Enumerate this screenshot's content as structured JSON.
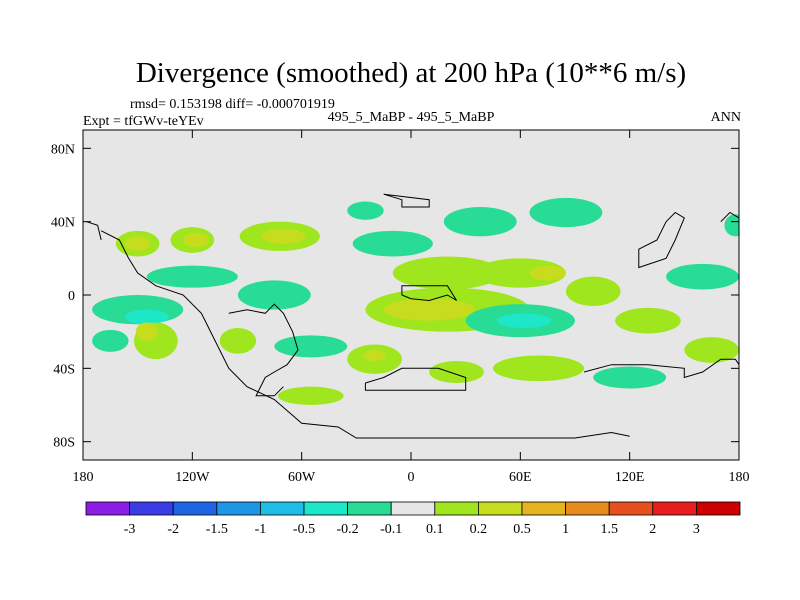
{
  "chart_data": {
    "type": "heatmap",
    "projection": "cylindrical-equidistant",
    "title": "Divergence (smoothed) at 200 hPa (10**6 m/s)",
    "stats_line": "rmsd= 0.153198 diff= -0.000701919",
    "left_label": "Expt = tfGWv-teYEv",
    "center_label": "495_5_MaBP - 495_5_MaBP",
    "right_label": "ANN",
    "xlim": [
      -180,
      180
    ],
    "ylim": [
      -90,
      90
    ],
    "x_ticks": [
      {
        "value": -180,
        "label": "180"
      },
      {
        "value": -120,
        "label": "120W"
      },
      {
        "value": -60,
        "label": "60W"
      },
      {
        "value": 0,
        "label": "0"
      },
      {
        "value": 60,
        "label": "60E"
      },
      {
        "value": 120,
        "label": "120E"
      },
      {
        "value": 180,
        "label": "180"
      }
    ],
    "y_ticks": [
      {
        "value": 80,
        "label": "80N"
      },
      {
        "value": 40,
        "label": "40N"
      },
      {
        "value": 0,
        "label": "0"
      },
      {
        "value": -40,
        "label": "40S"
      },
      {
        "value": -80,
        "label": "80S"
      }
    ],
    "background_color": "#e6e6e6",
    "colorbar": {
      "levels": [
        "-3",
        "-2",
        "-1.5",
        "-1",
        "-0.5",
        "-0.2",
        "-0.1",
        "0.1",
        "0.2",
        "0.5",
        "1",
        "1.5",
        "2",
        "3"
      ],
      "colors": [
        "#8c1ee6",
        "#3c3ce6",
        "#1e64e6",
        "#1e96e6",
        "#1ebee6",
        "#1ee6c8",
        "#28dc96",
        "#e6e6e6",
        "#a0e61e",
        "#c8dc1e",
        "#e6b41e",
        "#e68c1e",
        "#e6501e",
        "#e61e1e",
        "#cc0000"
      ]
    },
    "blobs": [
      {
        "lon": -150,
        "lat": 28,
        "rlon": 12,
        "rlat": 7,
        "level": "pos1"
      },
      {
        "lon": -150,
        "lat": 28,
        "rlon": 7,
        "rlat": 4,
        "level": "pos2"
      },
      {
        "lon": -120,
        "lat": 30,
        "rlon": 12,
        "rlat": 7,
        "level": "pos1"
      },
      {
        "lon": -118,
        "lat": 30,
        "rlon": 7,
        "rlat": 4,
        "level": "pos2"
      },
      {
        "lon": -72,
        "lat": 32,
        "rlon": 22,
        "rlat": 8,
        "level": "pos1"
      },
      {
        "lon": -70,
        "lat": 32,
        "rlon": 12,
        "rlat": 4,
        "level": "pos2"
      },
      {
        "lon": -25,
        "lat": 46,
        "rlon": 10,
        "rlat": 5,
        "level": "neg1"
      },
      {
        "lon": -10,
        "lat": 28,
        "rlon": 22,
        "rlat": 7,
        "level": "neg1"
      },
      {
        "lon": 38,
        "lat": 40,
        "rlon": 20,
        "rlat": 8,
        "level": "neg1"
      },
      {
        "lon": 85,
        "lat": 45,
        "rlon": 20,
        "rlat": 8,
        "level": "neg1"
      },
      {
        "lon": 20,
        "lat": 12,
        "rlon": 30,
        "rlat": 9,
        "level": "pos1"
      },
      {
        "lon": 60,
        "lat": 12,
        "rlon": 25,
        "rlat": 8,
        "level": "pos1"
      },
      {
        "lon": 75,
        "lat": 12,
        "rlon": 10,
        "rlat": 4,
        "level": "pos2"
      },
      {
        "lon": 20,
        "lat": -8,
        "rlon": 45,
        "rlat": 12,
        "level": "pos1"
      },
      {
        "lon": 10,
        "lat": -8,
        "rlon": 25,
        "rlat": 6,
        "level": "pos2"
      },
      {
        "lon": 60,
        "lat": -14,
        "rlon": 30,
        "rlat": 9,
        "level": "neg1"
      },
      {
        "lon": 62,
        "lat": -14,
        "rlon": 15,
        "rlat": 4,
        "level": "neg2"
      },
      {
        "lon": 100,
        "lat": 2,
        "rlon": 15,
        "rlat": 8,
        "level": "pos1"
      },
      {
        "lon": 130,
        "lat": -14,
        "rlon": 18,
        "rlat": 7,
        "level": "pos1"
      },
      {
        "lon": 160,
        "lat": 10,
        "rlon": 20,
        "rlat": 7,
        "level": "neg1"
      },
      {
        "lon": -120,
        "lat": 10,
        "rlon": 25,
        "rlat": 6,
        "level": "neg1"
      },
      {
        "lon": -150,
        "lat": -8,
        "rlon": 25,
        "rlat": 8,
        "level": "neg1"
      },
      {
        "lon": -145,
        "lat": -12,
        "rlon": 12,
        "rlat": 4,
        "level": "neg2"
      },
      {
        "lon": -75,
        "lat": 0,
        "rlon": 20,
        "rlat": 8,
        "level": "neg1"
      },
      {
        "lon": -140,
        "lat": -25,
        "rlon": 12,
        "rlat": 10,
        "level": "pos1"
      },
      {
        "lon": -145,
        "lat": -20,
        "rlon": 6,
        "rlat": 5,
        "level": "pos2"
      },
      {
        "lon": -95,
        "lat": -25,
        "rlon": 10,
        "rlat": 7,
        "level": "pos1"
      },
      {
        "lon": -55,
        "lat": -28,
        "rlon": 20,
        "rlat": 6,
        "level": "neg1"
      },
      {
        "lon": -20,
        "lat": -35,
        "rlon": 15,
        "rlat": 8,
        "level": "pos1"
      },
      {
        "lon": -20,
        "lat": -33,
        "rlon": 6,
        "rlat": 3,
        "level": "pos2"
      },
      {
        "lon": 25,
        "lat": -42,
        "rlon": 15,
        "rlat": 6,
        "level": "pos1"
      },
      {
        "lon": 70,
        "lat": -40,
        "rlon": 25,
        "rlat": 7,
        "level": "pos1"
      },
      {
        "lon": -55,
        "lat": -55,
        "rlon": 18,
        "rlat": 5,
        "level": "pos1"
      },
      {
        "lon": 120,
        "lat": -45,
        "rlon": 20,
        "rlat": 6,
        "level": "neg1"
      },
      {
        "lon": 165,
        "lat": -30,
        "rlon": 15,
        "rlat": 7,
        "level": "pos1"
      },
      {
        "lon": -165,
        "lat": -25,
        "rlon": 10,
        "rlat": 6,
        "level": "neg1"
      },
      {
        "lon": 178,
        "lat": 38,
        "rlon": 6,
        "rlat": 6,
        "level": "neg1"
      }
    ],
    "coastlines": [
      [
        [
          -170,
          35
        ],
        [
          -160,
          30
        ],
        [
          -155,
          20
        ],
        [
          -150,
          12
        ],
        [
          -140,
          5
        ],
        [
          -125,
          0
        ],
        [
          -115,
          -10
        ],
        [
          -105,
          -30
        ],
        [
          -100,
          -40
        ],
        [
          -90,
          -50
        ],
        [
          -75,
          -57
        ],
        [
          -60,
          -70
        ],
        [
          -40,
          -72
        ],
        [
          -30,
          -78
        ],
        [
          90,
          -78
        ],
        [
          110,
          -75
        ],
        [
          120,
          -77
        ]
      ],
      [
        [
          -100,
          -10
        ],
        [
          -90,
          -8
        ],
        [
          -80,
          -10
        ],
        [
          -75,
          -5
        ],
        [
          -70,
          -10
        ],
        [
          -65,
          -20
        ],
        [
          -62,
          -30
        ],
        [
          -68,
          -38
        ],
        [
          -75,
          -42
        ],
        [
          -80,
          -45
        ],
        [
          -85,
          -55
        ],
        [
          -75,
          -55
        ],
        [
          -70,
          -50
        ]
      ],
      [
        [
          -15,
          55
        ],
        [
          -5,
          52
        ],
        [
          -5,
          48
        ],
        [
          10,
          48
        ],
        [
          10,
          52
        ],
        [
          -15,
          55
        ]
      ],
      [
        [
          -5,
          0
        ],
        [
          0,
          -2
        ],
        [
          10,
          -3
        ],
        [
          20,
          0
        ],
        [
          25,
          -3
        ],
        [
          20,
          5
        ],
        [
          10,
          5
        ],
        [
          -5,
          5
        ],
        [
          -5,
          0
        ]
      ],
      [
        [
          -25,
          -48
        ],
        [
          -15,
          -45
        ],
        [
          -5,
          -40
        ],
        [
          15,
          -40
        ],
        [
          30,
          -45
        ],
        [
          30,
          -52
        ],
        [
          -25,
          -52
        ],
        [
          -25,
          -48
        ]
      ],
      [
        [
          95,
          -42
        ],
        [
          110,
          -38
        ],
        [
          130,
          -38
        ],
        [
          150,
          -40
        ],
        [
          150,
          -45
        ],
        [
          160,
          -42
        ],
        [
          170,
          -35
        ],
        [
          178,
          -35
        ],
        [
          180,
          -38
        ]
      ],
      [
        [
          140,
          40
        ],
        [
          145,
          45
        ],
        [
          150,
          42
        ],
        [
          145,
          30
        ],
        [
          140,
          20
        ],
        [
          125,
          15
        ],
        [
          125,
          25
        ],
        [
          135,
          30
        ],
        [
          140,
          40
        ]
      ],
      [
        [
          170,
          40
        ],
        [
          175,
          45
        ],
        [
          180,
          42
        ]
      ],
      [
        [
          -178,
          40
        ],
        [
          -172,
          38
        ],
        [
          -170,
          30
        ]
      ]
    ]
  }
}
